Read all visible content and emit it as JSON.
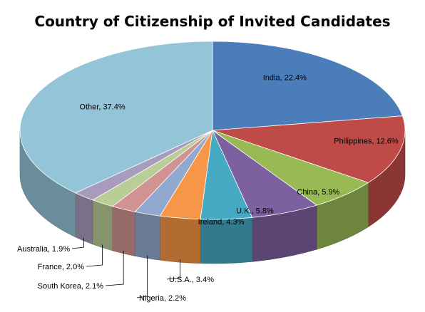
{
  "chart_data": {
    "type": "pie",
    "title": "Country of Citizenship of Invited Candidates",
    "categories": [
      "India",
      "Philippines",
      "China",
      "U.K.",
      "Ireland",
      "U.S.A.",
      "Nigeria",
      "South Korea",
      "France",
      "Australia",
      "Other"
    ],
    "values": [
      22.4,
      12.6,
      5.9,
      5.8,
      4.3,
      3.4,
      2.2,
      2.1,
      2.0,
      1.9,
      37.4
    ],
    "labels": [
      "India, 22.4%",
      "Philippines, 12.6%",
      "China, 5.9%",
      "U.K., 5.8%",
      "Ireland, 4.3%",
      "U.S.A., 3.4%",
      "Nigeria, 2.2%",
      "South Korea, 2.1%",
      "France, 2.0%",
      "Australia, 1.9%",
      "Other, 37.4%"
    ],
    "colors": [
      "#4A7DBA",
      "#BE4B48",
      "#98B954",
      "#7D60A0",
      "#46AAC5",
      "#F79646",
      "#92A9CF",
      "#D19392",
      "#B9CD96",
      "#A99BBD",
      "#93C4D8"
    ],
    "unit": "%",
    "style": "3d-exploded-none",
    "legend": "none"
  }
}
